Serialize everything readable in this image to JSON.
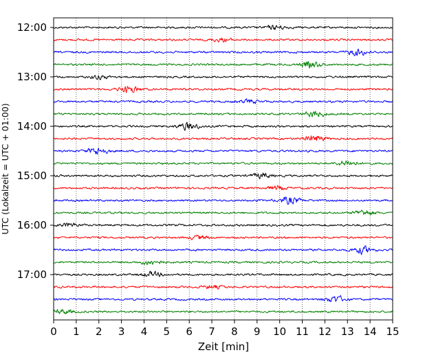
{
  "chart_data": {
    "type": "line",
    "title": "",
    "xlabel": "Zeit  [min]",
    "ylabel": "UTC (Lokalzeit = UTC + 01:00)",
    "xlim": [
      0,
      15
    ],
    "x_ticks": [
      0,
      1,
      2,
      3,
      4,
      5,
      6,
      7,
      8,
      9,
      10,
      11,
      12,
      13,
      14,
      15
    ],
    "x_tick_labels": [
      "0",
      "1",
      "2",
      "3",
      "4",
      "5",
      "6",
      "7",
      "8",
      "9",
      "10",
      "11",
      "12",
      "13",
      "14",
      "15"
    ],
    "y_tick_labels": [
      "12:00",
      "13:00",
      "14:00",
      "15:00",
      "16:00",
      "17:00"
    ],
    "trace_interval_minutes": 15,
    "start_utc": "12:00",
    "grid": "vertical dotted",
    "colors": [
      "#000000",
      "#ff0000",
      "#0000ff",
      "#008000"
    ],
    "traces": [
      {
        "start": "12:00",
        "color": "#000000"
      },
      {
        "start": "12:15",
        "color": "#ff0000"
      },
      {
        "start": "12:30",
        "color": "#0000ff"
      },
      {
        "start": "12:45",
        "color": "#008000"
      },
      {
        "start": "13:00",
        "color": "#000000"
      },
      {
        "start": "13:15",
        "color": "#ff0000"
      },
      {
        "start": "13:30",
        "color": "#0000ff"
      },
      {
        "start": "13:45",
        "color": "#008000"
      },
      {
        "start": "14:00",
        "color": "#000000"
      },
      {
        "start": "14:15",
        "color": "#ff0000"
      },
      {
        "start": "14:30",
        "color": "#0000ff"
      },
      {
        "start": "14:45",
        "color": "#008000"
      },
      {
        "start": "15:00",
        "color": "#000000"
      },
      {
        "start": "15:15",
        "color": "#ff0000"
      },
      {
        "start": "15:30",
        "color": "#0000ff"
      },
      {
        "start": "15:45",
        "color": "#008000"
      },
      {
        "start": "16:00",
        "color": "#000000"
      },
      {
        "start": "16:15",
        "color": "#ff0000"
      },
      {
        "start": "16:30",
        "color": "#0000ff"
      },
      {
        "start": "16:45",
        "color": "#008000"
      },
      {
        "start": "17:00",
        "color": "#000000"
      },
      {
        "start": "17:15",
        "color": "#ff0000"
      },
      {
        "start": "17:30",
        "color": "#0000ff"
      },
      {
        "start": "17:45",
        "color": "#008000"
      }
    ]
  }
}
